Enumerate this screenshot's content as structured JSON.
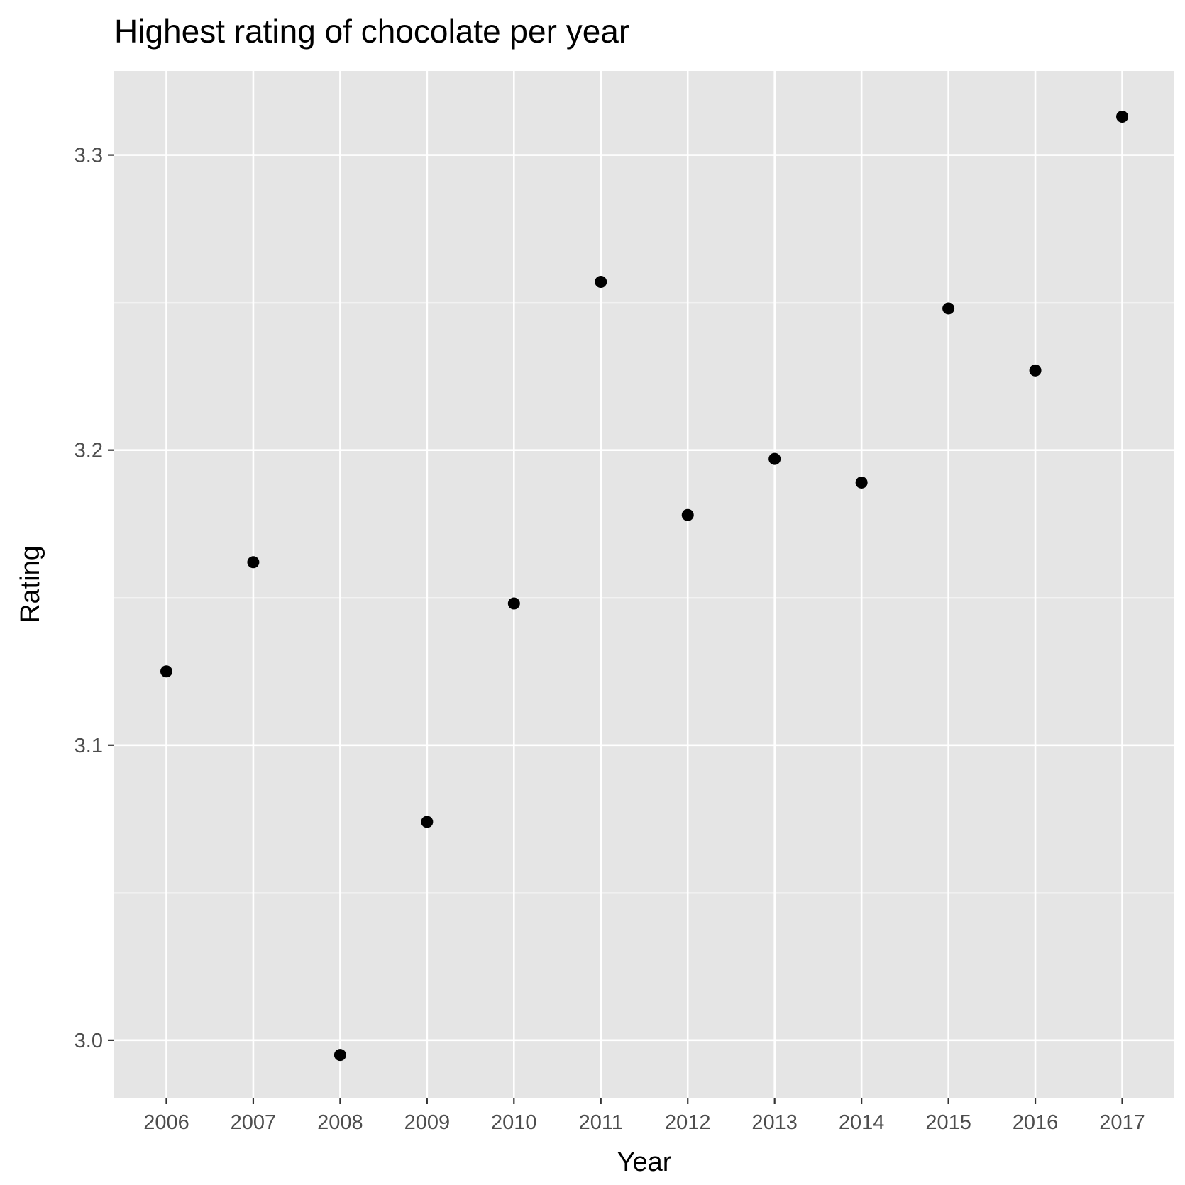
{
  "chart_data": {
    "type": "scatter",
    "title": "Highest rating of chocolate per year",
    "xlabel": "Year",
    "ylabel": "Rating",
    "x": [
      2006,
      2007,
      2008,
      2009,
      2010,
      2011,
      2012,
      2013,
      2014,
      2015,
      2016,
      2017
    ],
    "y": [
      3.125,
      3.162,
      2.995,
      3.074,
      3.148,
      3.257,
      3.178,
      3.197,
      3.189,
      3.248,
      3.227,
      3.313
    ],
    "x_ticks": [
      "2006",
      "2007",
      "2008",
      "2009",
      "2010",
      "2011",
      "2012",
      "2013",
      "2014",
      "2015",
      "2016",
      "2017"
    ],
    "y_ticks": [
      "3.0",
      "3.1",
      "3.2",
      "3.3"
    ],
    "ylim": [
      2.9805,
      3.3285
    ],
    "grid": true,
    "legend": "none",
    "colors": {
      "panel_background": "#e5e5e5",
      "grid_major": "#ffffff",
      "grid_minor": "#f2f2f2",
      "point": "#000000",
      "tick_label": "#4d4d4d",
      "text": "#000000"
    }
  }
}
